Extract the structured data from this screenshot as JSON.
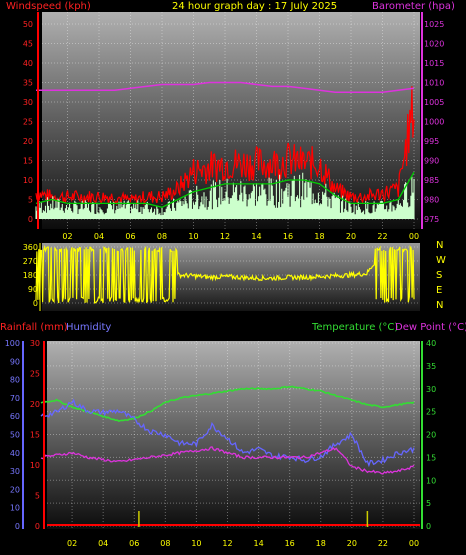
{
  "header": {
    "left_title": "Windspeed (kph)",
    "center_title": "24 hour graph day : 17 July 2025",
    "right_title": "Barometer (hpa)"
  },
  "colors": {
    "wind": "#ff0000",
    "gust": "#ff0000",
    "wind_avg": "#00cc00",
    "wind_fill": "#ccffcc",
    "baro": "#dd33dd",
    "dir": "#ffff00",
    "rain": "#ff0000",
    "humidity": "#6666ff",
    "temp": "#33dd33",
    "dew": "#dd33dd",
    "text": "#ffff00"
  },
  "chart_data": [
    {
      "type": "line",
      "name": "wind-barometer",
      "title": "24 hour graph day : 17 July 2025",
      "ylabel_left": "Windspeed (kph)",
      "ylabel_right": "Barometer (hpa)",
      "x_ticks": [
        "02",
        "04",
        "06",
        "08",
        "10",
        "12",
        "14",
        "16",
        "18",
        "20",
        "22",
        "00"
      ],
      "y_left_ticks": [
        "0",
        "5",
        "10",
        "15",
        "20",
        "25",
        "30",
        "35",
        "40",
        "45",
        "50"
      ],
      "y_right_ticks": [
        "975",
        "980",
        "985",
        "990",
        "995",
        "1000",
        "1005",
        "1010",
        "1015",
        "1020",
        "1025"
      ],
      "ylim_left": [
        0,
        50
      ],
      "ylim_right": [
        975,
        1025
      ],
      "x": [
        0,
        1,
        2,
        3,
        4,
        5,
        6,
        7,
        8,
        9,
        10,
        11,
        12,
        13,
        14,
        15,
        16,
        17,
        18,
        19,
        20,
        21,
        22,
        23,
        24
      ],
      "series": [
        {
          "values": [
            7,
            6,
            6,
            6,
            6,
            6,
            5,
            6,
            6,
            8,
            13,
            14,
            15,
            15,
            15,
            15,
            16,
            15,
            15,
            8,
            6,
            6,
            7,
            8,
            31
          ]
        },
        {
          "values": [
            4,
            5,
            4,
            4,
            4,
            4,
            4,
            4,
            3,
            5,
            7,
            8,
            9,
            9,
            9,
            9,
            10,
            10,
            9,
            6,
            4,
            4,
            4,
            5,
            12
          ]
        },
        {
          "values": [
            1008,
            1008,
            1008,
            1008,
            1008,
            1008,
            1008.5,
            1009,
            1009.5,
            1009.5,
            1009.5,
            1010,
            1010,
            1010,
            1009.5,
            1009,
            1009,
            1008.5,
            1008,
            1007.5,
            1007.5,
            1007.5,
            1007.5,
            1008,
            1008.5
          ]
        }
      ]
    },
    {
      "type": "line",
      "name": "wind-direction",
      "y_left_ticks": [
        "360",
        "270",
        "180",
        "90",
        "0"
      ],
      "compass": [
        "N",
        "W",
        "S",
        "E",
        "N"
      ],
      "ylim": [
        0,
        360
      ],
      "x": [
        0,
        1,
        2,
        3,
        4,
        5,
        6,
        7,
        8,
        9,
        10,
        11,
        12,
        13,
        14,
        15,
        16,
        17,
        18,
        19,
        20,
        21,
        22,
        23,
        24
      ],
      "series": [
        {
          "values": [
            290,
            300,
            30,
            310,
            20,
            310,
            20,
            20,
            310,
            180,
            175,
            165,
            170,
            165,
            160,
            160,
            165,
            165,
            170,
            175,
            180,
            190,
            330,
            300,
            290
          ]
        }
      ]
    },
    {
      "type": "line",
      "name": "rain-humidity-temperature",
      "ylabel_left": "Rainfall (mm)",
      "ylabel_left2": "Humidity",
      "ylabel_right": "Temperature (°C)",
      "ylabel_right2": "Dew Point (°C)",
      "x_ticks": [
        "02",
        "04",
        "06",
        "08",
        "10",
        "12",
        "14",
        "16",
        "18",
        "20",
        "22",
        "00"
      ],
      "y_rain_ticks": [
        "0",
        "5",
        "10",
        "15",
        "20",
        "25",
        "30"
      ],
      "y_hum_ticks": [
        "0",
        "10",
        "20",
        "30",
        "40",
        "50",
        "60",
        "70",
        "80",
        "90",
        "100"
      ],
      "y_temp_ticks": [
        "0",
        "5",
        "10",
        "15",
        "20",
        "25",
        "30",
        "35",
        "40"
      ],
      "ylim_rain": [
        0,
        30
      ],
      "ylim_humidity": [
        0,
        100
      ],
      "ylim_temp": [
        0,
        40
      ],
      "x": [
        0,
        1,
        2,
        3,
        4,
        5,
        6,
        7,
        8,
        9,
        10,
        11,
        12,
        13,
        14,
        15,
        16,
        17,
        18,
        19,
        20,
        21,
        22,
        23,
        24
      ],
      "series": [
        {
          "values": [
            0,
            0,
            0,
            0,
            0,
            0,
            0,
            0,
            0,
            0,
            0,
            0,
            0,
            0,
            0,
            0,
            0,
            0,
            0,
            0,
            0,
            0,
            0,
            0,
            0
          ]
        },
        {
          "values": [
            60,
            62,
            68,
            63,
            62,
            63,
            58,
            52,
            50,
            45,
            45,
            55,
            48,
            40,
            42,
            38,
            38,
            36,
            38,
            45,
            50,
            34,
            36,
            40,
            42
          ]
        },
        {
          "values": [
            27,
            27.5,
            26,
            25,
            24,
            23,
            23.5,
            25,
            27,
            28,
            28.5,
            29,
            29.5,
            30,
            30,
            30,
            30.5,
            30,
            29.5,
            28.5,
            27.5,
            26.5,
            26,
            26.5,
            27
          ]
        },
        {
          "values": [
            15,
            15.5,
            16,
            15,
            14.5,
            14,
            14.5,
            15,
            15.5,
            16,
            16.5,
            17,
            16,
            15,
            15,
            15,
            15,
            15,
            16,
            17,
            13,
            12,
            11.5,
            12,
            13
          ]
        }
      ]
    }
  ]
}
